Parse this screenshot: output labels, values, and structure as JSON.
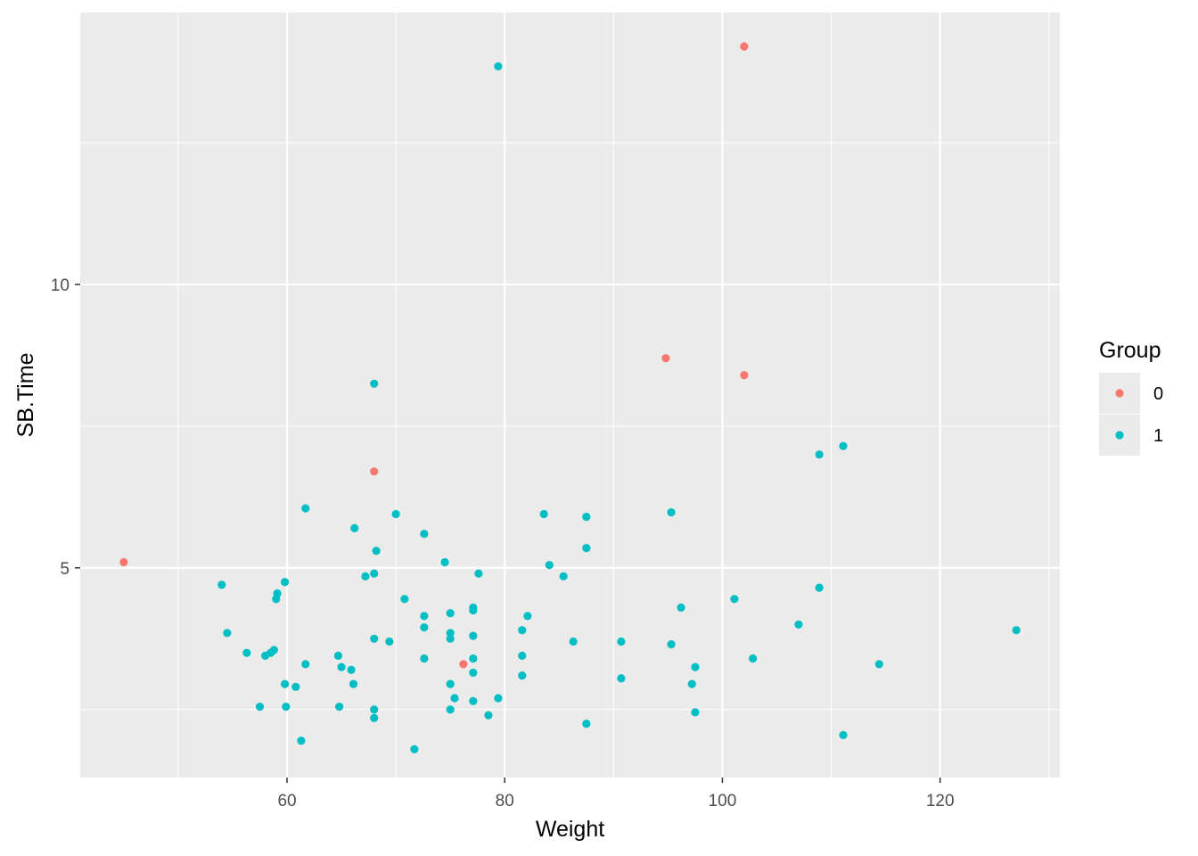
{
  "chart_data": {
    "type": "scatter",
    "xlabel": "Weight",
    "ylabel": "SB.Time",
    "xlim": [
      41,
      131
    ],
    "ylim": [
      1.3,
      14.8
    ],
    "x_ticks": [
      60,
      80,
      100,
      120
    ],
    "x_tick_labels": [
      "60",
      "80",
      "100",
      "120"
    ],
    "y_ticks": [
      5,
      10
    ],
    "y_tick_labels": [
      "5",
      "10"
    ],
    "grid": true,
    "legend": {
      "title": "Group",
      "placement": "right",
      "entries": [
        {
          "label": "0",
          "color": "#F8766D"
        },
        {
          "label": "1",
          "color": "#00BFC4"
        }
      ]
    },
    "series": [
      {
        "name": "0",
        "color": "#F8766D",
        "points": [
          [
            45,
            5.1
          ],
          [
            68,
            6.7
          ],
          [
            76.2,
            3.3
          ],
          [
            94.8,
            8.7
          ],
          [
            102,
            8.4
          ],
          [
            102,
            14.2
          ]
        ]
      },
      {
        "name": "1",
        "color": "#00BFC4",
        "points": [
          [
            54,
            4.7
          ],
          [
            54.5,
            3.85
          ],
          [
            56.3,
            3.5
          ],
          [
            57.5,
            2.55
          ],
          [
            58,
            3.45
          ],
          [
            58.5,
            3.5
          ],
          [
            58.8,
            3.55
          ],
          [
            59,
            4.45
          ],
          [
            59.1,
            4.55
          ],
          [
            59.8,
            4.75
          ],
          [
            59.8,
            2.95
          ],
          [
            59.9,
            2.55
          ],
          [
            60.8,
            2.9
          ],
          [
            61.3,
            1.95
          ],
          [
            61.7,
            3.3
          ],
          [
            61.7,
            6.05
          ],
          [
            64.7,
            3.45
          ],
          [
            64.8,
            2.55
          ],
          [
            65,
            3.25
          ],
          [
            65.9,
            3.2
          ],
          [
            66.1,
            2.95
          ],
          [
            66.2,
            5.7
          ],
          [
            67.2,
            4.85
          ],
          [
            68,
            8.25
          ],
          [
            68,
            4.9
          ],
          [
            68,
            3.75
          ],
          [
            68,
            2.5
          ],
          [
            68,
            2.35
          ],
          [
            68.2,
            5.3
          ],
          [
            69.4,
            3.7
          ],
          [
            70,
            5.95
          ],
          [
            70.8,
            4.45
          ],
          [
            71.7,
            1.8
          ],
          [
            72.6,
            5.6
          ],
          [
            72.6,
            4.15
          ],
          [
            72.6,
            3.95
          ],
          [
            72.6,
            3.4
          ],
          [
            74.5,
            5.1
          ],
          [
            75,
            4.2
          ],
          [
            75,
            3.85
          ],
          [
            75,
            3.75
          ],
          [
            75,
            2.95
          ],
          [
            75,
            2.5
          ],
          [
            75.4,
            2.7
          ],
          [
            77.1,
            4.3
          ],
          [
            77.1,
            4.25
          ],
          [
            77.1,
            3.8
          ],
          [
            77.1,
            3.4
          ],
          [
            77.1,
            3.15
          ],
          [
            77.1,
            2.65
          ],
          [
            77.6,
            4.9
          ],
          [
            78.5,
            2.4
          ],
          [
            79.4,
            13.85
          ],
          [
            79.4,
            2.7
          ],
          [
            81.6,
            3.9
          ],
          [
            81.6,
            3.45
          ],
          [
            81.6,
            3.1
          ],
          [
            82.1,
            4.15
          ],
          [
            83.6,
            5.95
          ],
          [
            84.1,
            5.05
          ],
          [
            85.4,
            4.85
          ],
          [
            86.3,
            3.7
          ],
          [
            87.5,
            5.9
          ],
          [
            87.5,
            5.35
          ],
          [
            87.5,
            2.25
          ],
          [
            90.7,
            3.7
          ],
          [
            90.7,
            3.05
          ],
          [
            95.3,
            5.98
          ],
          [
            95.3,
            3.65
          ],
          [
            96.2,
            4.3
          ],
          [
            97.2,
            2.95
          ],
          [
            97.5,
            3.25
          ],
          [
            97.5,
            2.45
          ],
          [
            101.1,
            4.45
          ],
          [
            102.8,
            3.4
          ],
          [
            107,
            4.0
          ],
          [
            108.9,
            7.0
          ],
          [
            108.9,
            4.65
          ],
          [
            111.1,
            7.15
          ],
          [
            111.1,
            2.05
          ],
          [
            114.4,
            3.3
          ],
          [
            127,
            3.9
          ]
        ]
      }
    ]
  }
}
